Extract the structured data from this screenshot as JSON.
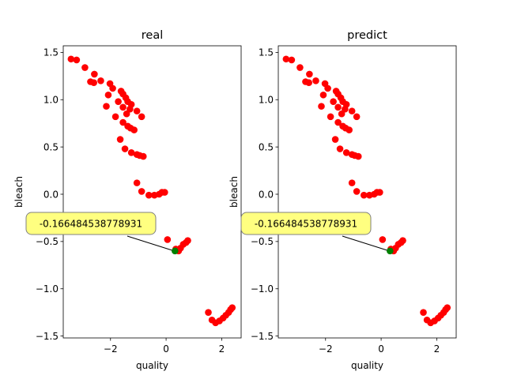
{
  "chart_data": [
    {
      "type": "scatter",
      "title": "real",
      "xlabel": "quality",
      "ylabel": "bleach",
      "xlim": [
        -3.7,
        2.7
      ],
      "ylim": [
        -1.52,
        1.57
      ],
      "xticks": [
        -2,
        0,
        2
      ],
      "yticks": [
        -1.5,
        -1.0,
        -0.5,
        0.0,
        0.5,
        1.0,
        1.5
      ],
      "grid": false,
      "point_color": "#ff0000",
      "highlight_color": "#008000",
      "points": [
        [
          -3.42,
          1.43
        ],
        [
          -3.22,
          1.42
        ],
        [
          -2.92,
          1.34
        ],
        [
          -2.58,
          1.27
        ],
        [
          -2.72,
          1.19
        ],
        [
          -2.6,
          1.18
        ],
        [
          -2.35,
          1.2
        ],
        [
          -2.02,
          1.17
        ],
        [
          -1.92,
          1.12
        ],
        [
          -1.62,
          1.09
        ],
        [
          -1.55,
          1.06
        ],
        [
          -2.08,
          1.05
        ],
        [
          -1.45,
          1.02
        ],
        [
          -1.72,
          0.98
        ],
        [
          -1.38,
          0.98
        ],
        [
          -1.25,
          0.95
        ],
        [
          -1.55,
          0.92
        ],
        [
          -1.3,
          0.9
        ],
        [
          -1.05,
          0.88
        ],
        [
          -2.15,
          0.93
        ],
        [
          -1.42,
          0.85
        ],
        [
          -1.82,
          0.82
        ],
        [
          -0.88,
          0.82
        ],
        [
          -1.55,
          0.76
        ],
        [
          -1.38,
          0.72
        ],
        [
          -1.28,
          0.7
        ],
        [
          -1.15,
          0.68
        ],
        [
          -1.65,
          0.58
        ],
        [
          -1.48,
          0.48
        ],
        [
          -1.25,
          0.44
        ],
        [
          -1.05,
          0.42
        ],
        [
          -0.95,
          0.41
        ],
        [
          -0.82,
          0.4
        ],
        [
          -1.05,
          0.12
        ],
        [
          -0.88,
          0.03
        ],
        [
          -0.62,
          -0.01
        ],
        [
          -0.42,
          -0.01
        ],
        [
          -0.25,
          0.0
        ],
        [
          -0.15,
          0.02
        ],
        [
          -0.05,
          0.02
        ],
        [
          0.05,
          -0.48
        ],
        [
          0.52,
          -0.57
        ],
        [
          0.62,
          -0.53
        ],
        [
          0.72,
          -0.51
        ],
        [
          0.78,
          -0.49
        ],
        [
          0.35,
          -0.58
        ],
        [
          0.45,
          -0.6
        ],
        [
          1.52,
          -1.25
        ],
        [
          1.65,
          -1.33
        ],
        [
          1.78,
          -1.36
        ],
        [
          1.92,
          -1.34
        ],
        [
          2.05,
          -1.31
        ],
        [
          2.15,
          -1.28
        ],
        [
          2.25,
          -1.25
        ],
        [
          2.32,
          -1.22
        ],
        [
          2.38,
          -1.2
        ]
      ],
      "highlight": {
        "x": 0.32,
        "y": -0.6
      },
      "annotation": {
        "text": "-0.166484538778931",
        "anchor": "left-of-highlight",
        "box_color": "#ffff80"
      }
    },
    {
      "type": "scatter",
      "title": "predict",
      "xlabel": "quality",
      "ylabel": "bleach",
      "xlim": [
        -3.7,
        2.7
      ],
      "ylim": [
        -1.52,
        1.57
      ],
      "xticks": [
        -2,
        0,
        2
      ],
      "yticks": [
        -1.5,
        -1.0,
        -0.5,
        0.0,
        0.5,
        1.0,
        1.5
      ],
      "grid": false,
      "point_color": "#ff0000",
      "highlight_color": "#008000",
      "points": [
        [
          -3.42,
          1.43
        ],
        [
          -3.22,
          1.42
        ],
        [
          -2.92,
          1.34
        ],
        [
          -2.58,
          1.27
        ],
        [
          -2.72,
          1.19
        ],
        [
          -2.6,
          1.18
        ],
        [
          -2.35,
          1.2
        ],
        [
          -2.02,
          1.17
        ],
        [
          -1.92,
          1.12
        ],
        [
          -1.62,
          1.09
        ],
        [
          -1.55,
          1.06
        ],
        [
          -2.08,
          1.05
        ],
        [
          -1.45,
          1.02
        ],
        [
          -1.72,
          0.98
        ],
        [
          -1.38,
          0.98
        ],
        [
          -1.25,
          0.95
        ],
        [
          -1.55,
          0.92
        ],
        [
          -1.3,
          0.9
        ],
        [
          -1.05,
          0.88
        ],
        [
          -2.15,
          0.93
        ],
        [
          -1.42,
          0.85
        ],
        [
          -1.82,
          0.82
        ],
        [
          -0.88,
          0.82
        ],
        [
          -1.55,
          0.76
        ],
        [
          -1.38,
          0.72
        ],
        [
          -1.28,
          0.7
        ],
        [
          -1.15,
          0.68
        ],
        [
          -1.65,
          0.58
        ],
        [
          -1.48,
          0.48
        ],
        [
          -1.25,
          0.44
        ],
        [
          -1.05,
          0.42
        ],
        [
          -0.95,
          0.41
        ],
        [
          -0.82,
          0.4
        ],
        [
          -1.05,
          0.12
        ],
        [
          -0.88,
          0.03
        ],
        [
          -0.62,
          -0.01
        ],
        [
          -0.42,
          -0.01
        ],
        [
          -0.25,
          0.0
        ],
        [
          -0.15,
          0.02
        ],
        [
          -0.05,
          0.02
        ],
        [
          0.05,
          -0.48
        ],
        [
          0.52,
          -0.57
        ],
        [
          0.62,
          -0.53
        ],
        [
          0.72,
          -0.51
        ],
        [
          0.78,
          -0.49
        ],
        [
          0.35,
          -0.58
        ],
        [
          0.45,
          -0.6
        ],
        [
          1.52,
          -1.25
        ],
        [
          1.65,
          -1.33
        ],
        [
          1.78,
          -1.36
        ],
        [
          1.92,
          -1.34
        ],
        [
          2.05,
          -1.31
        ],
        [
          2.15,
          -1.28
        ],
        [
          2.25,
          -1.25
        ],
        [
          2.32,
          -1.22
        ],
        [
          2.38,
          -1.2
        ]
      ],
      "highlight": {
        "x": 0.32,
        "y": -0.6
      },
      "annotation": {
        "text": "-0.166484538778931",
        "anchor": "left-of-highlight",
        "box_color": "#ffff80"
      }
    }
  ]
}
